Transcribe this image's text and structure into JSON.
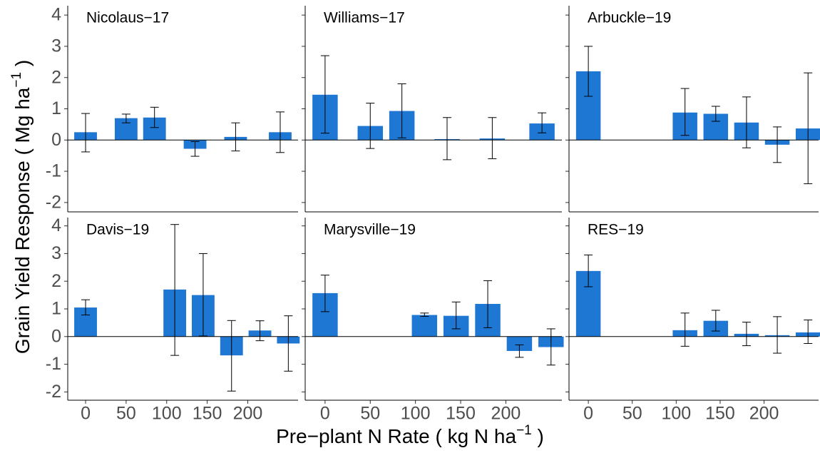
{
  "chart_data": [
    {
      "type": "bar",
      "title": "Nicolaus−17",
      "color": "#1f77d4",
      "x": [
        0,
        50,
        85,
        135,
        185,
        240
      ],
      "values": [
        0.25,
        0.7,
        0.72,
        -0.28,
        0.1,
        0.25
      ],
      "lower": [
        -0.38,
        0.55,
        0.4,
        -0.52,
        -0.35,
        -0.4
      ],
      "upper": [
        0.85,
        0.83,
        1.05,
        -0.05,
        0.55,
        0.9
      ],
      "xlim": [
        -22,
        262
      ],
      "xticks": [
        0,
        50,
        100,
        150,
        200
      ],
      "ylim": [
        -2.3,
        4.3
      ],
      "yticks": [
        -2,
        -1,
        0,
        1,
        2,
        3,
        4
      ]
    },
    {
      "type": "bar",
      "title": "Williams−17",
      "color": "#1f77d4",
      "x": [
        0,
        50,
        85,
        135,
        185,
        240
      ],
      "values": [
        1.45,
        0.45,
        0.93,
        0.03,
        0.05,
        0.53
      ],
      "lower": [
        0.22,
        -0.27,
        0.07,
        -0.63,
        -0.6,
        0.23
      ],
      "upper": [
        2.7,
        1.18,
        1.8,
        0.72,
        0.72,
        0.87
      ],
      "xlim": [
        -22,
        262
      ],
      "xticks": [
        0,
        50,
        100,
        150,
        200
      ],
      "ylim": [
        -2.3,
        4.3
      ],
      "yticks": [
        -2,
        -1,
        0,
        1,
        2,
        3,
        4
      ]
    },
    {
      "type": "bar",
      "title": "Arbuckle−19",
      "color": "#1f77d4",
      "x": [
        0,
        110,
        145,
        180,
        215,
        250
      ],
      "values": [
        2.2,
        0.88,
        0.84,
        0.56,
        -0.15,
        0.37
      ],
      "lower": [
        1.4,
        0.15,
        0.6,
        -0.25,
        -0.72,
        -1.4
      ],
      "upper": [
        3.0,
        1.65,
        1.08,
        1.38,
        0.42,
        2.15
      ],
      "xlim": [
        -22,
        262
      ],
      "xticks": [
        0,
        50,
        100,
        150,
        200
      ],
      "ylim": [
        -2.3,
        4.3
      ],
      "yticks": [
        -2,
        -1,
        0,
        1,
        2,
        3,
        4
      ]
    },
    {
      "type": "bar",
      "title": "Davis−19",
      "color": "#1f77d4",
      "x": [
        0,
        110,
        145,
        180,
        215,
        250
      ],
      "values": [
        1.05,
        1.7,
        1.5,
        -0.68,
        0.22,
        -0.25
      ],
      "lower": [
        0.78,
        -0.68,
        0.02,
        -1.97,
        -0.15,
        -1.25
      ],
      "upper": [
        1.33,
        4.05,
        3.0,
        0.58,
        0.57,
        0.75
      ],
      "xlim": [
        -22,
        262
      ],
      "xticks": [
        0,
        50,
        100,
        150,
        200
      ],
      "ylim": [
        -2.3,
        4.3
      ],
      "yticks": [
        -2,
        -1,
        0,
        1,
        2,
        3,
        4
      ]
    },
    {
      "type": "bar",
      "title": "Marysville−19",
      "color": "#1f77d4",
      "x": [
        0,
        110,
        145,
        180,
        215,
        250
      ],
      "values": [
        1.57,
        0.78,
        0.75,
        1.18,
        -0.52,
        -0.38
      ],
      "lower": [
        0.9,
        0.73,
        0.28,
        0.32,
        -0.75,
        -1.03
      ],
      "upper": [
        2.22,
        0.85,
        1.25,
        2.02,
        -0.3,
        0.28
      ],
      "xlim": [
        -22,
        262
      ],
      "xticks": [
        0,
        50,
        100,
        150,
        200
      ],
      "ylim": [
        -2.3,
        4.3
      ],
      "yticks": [
        -2,
        -1,
        0,
        1,
        2,
        3,
        4
      ]
    },
    {
      "type": "bar",
      "title": "RES−19",
      "color": "#1f77d4",
      "x": [
        0,
        110,
        145,
        180,
        215,
        250
      ],
      "values": [
        2.37,
        0.23,
        0.57,
        0.1,
        0.05,
        0.15
      ],
      "lower": [
        1.8,
        -0.35,
        0.2,
        -0.33,
        -0.6,
        -0.25
      ],
      "upper": [
        2.95,
        0.85,
        0.95,
        0.52,
        0.72,
        0.6
      ],
      "xlim": [
        -22,
        262
      ],
      "xticks": [
        0,
        50,
        100,
        150,
        200
      ],
      "ylim": [
        -2.3,
        4.3
      ],
      "yticks": [
        -2,
        -1,
        0,
        1,
        2,
        3,
        4
      ]
    }
  ],
  "x_label": {
    "text": "Pre−plant N Rate ( kg N ha",
    "sup": "−1",
    "end": " )"
  },
  "y_label": {
    "text": "Grain Yield Response ( Mg ha",
    "sup": "−1",
    "end": " )"
  }
}
